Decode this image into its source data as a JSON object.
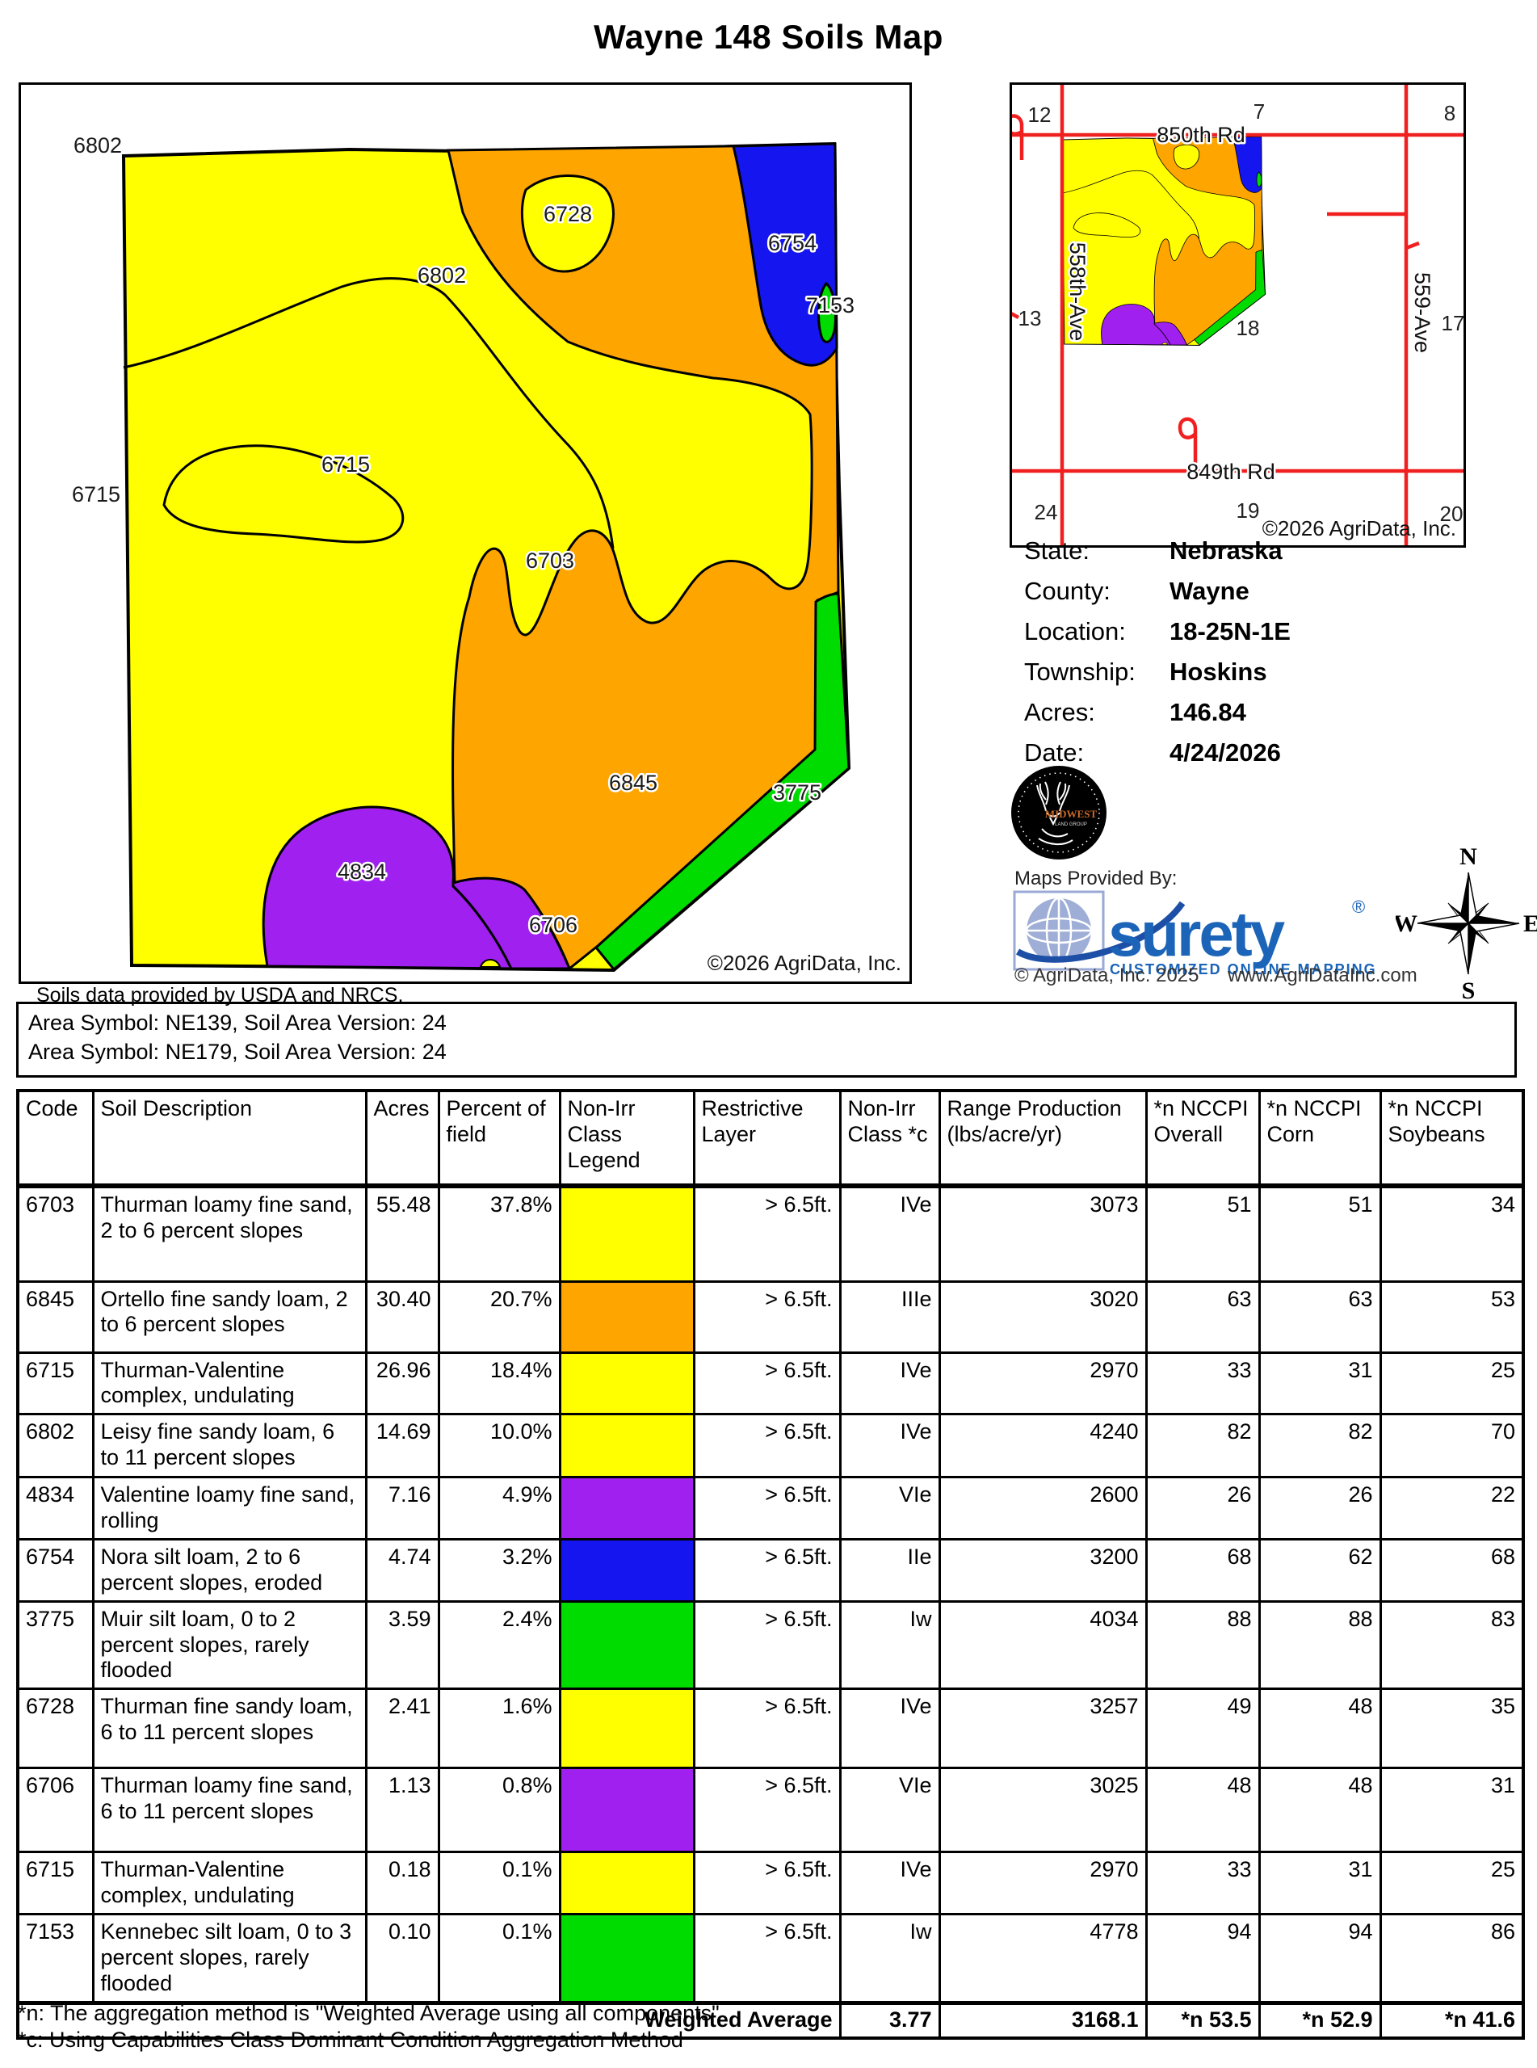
{
  "title": "Wayne 148 Soils Map",
  "colors": {
    "yellow": "#FFFF00",
    "orange": "#FFA500",
    "purple": "#A020F0",
    "blue": "#1515EF",
    "green": "#00DC00",
    "road_red": "#F02020",
    "surety_blue": "#1B64B8"
  },
  "map": {
    "labels": [
      "6802",
      "6728",
      "6802",
      "6754",
      "7153",
      "6715",
      "6715",
      "6703",
      "6845",
      "3775",
      "4834",
      "6706"
    ],
    "copyright": "©2026 AgriData, Inc."
  },
  "soils_note": "Soils data provided by USDA and NRCS.",
  "locator": {
    "road_top": "850th Rd",
    "road_bottom": "849th Rd",
    "road_left": "558th-Ave",
    "road_right": "559-Ave",
    "sections": [
      "12",
      "7",
      "8",
      "13",
      "18",
      "17",
      "24",
      "19",
      "20"
    ],
    "copyright": "©2026 AgriData, Inc."
  },
  "info": {
    "rows": [
      {
        "label": "State:",
        "value": "Nebraska"
      },
      {
        "label": "County:",
        "value": "Wayne"
      },
      {
        "label": "Location:",
        "value": "18-25N-1E"
      },
      {
        "label": "Township:",
        "value": "Hoskins"
      },
      {
        "label": "Acres:",
        "value": "146.84"
      },
      {
        "label": "Date:",
        "value": "4/24/2026"
      }
    ]
  },
  "logos": {
    "midwest_line1": "MIDWEST",
    "midwest_line2": "LAND GROUP",
    "provided_by": "Maps Provided By:",
    "surety": "surety",
    "surety_reg": "®",
    "surety_tag": "CUSTOMIZED ONLINE MAPPING",
    "agridata_copyright": "© AgriData, Inc. 2025",
    "agridata_url": "www.AgriDataInc.com"
  },
  "compass": {
    "n": "N",
    "e": "E",
    "s": "S",
    "w": "W"
  },
  "area_symbols": [
    "Area Symbol: NE139, Soil Area Version: 24",
    "Area Symbol: NE179, Soil Area Version: 24"
  ],
  "table": {
    "headers": [
      "Code",
      "Soil Description",
      "Acres",
      "Percent of field",
      "Non-Irr Class Legend",
      "Restrictive Layer",
      "Non-Irr Class *c",
      "Range Production (lbs/acre/yr)",
      "*n NCCPI Overall",
      "*n NCCPI Corn",
      "*n NCCPI Soybeans"
    ],
    "rows": [
      {
        "code": "6703",
        "desc": "Thurman loamy fine sand, 2 to 6 percent slopes",
        "acres": "55.48",
        "pct": "37.8%",
        "color": "#FFFF00",
        "restrictive": "> 6.5ft.",
        "cls": "IVe",
        "range": "3073",
        "overall": "51",
        "corn": "51",
        "soy": "34"
      },
      {
        "code": "6845",
        "desc": "Ortello fine sandy loam, 2 to 6 percent slopes",
        "acres": "30.40",
        "pct": "20.7%",
        "color": "#FFA500",
        "restrictive": "> 6.5ft.",
        "cls": "IIIe",
        "range": "3020",
        "overall": "63",
        "corn": "63",
        "soy": "53"
      },
      {
        "code": "6715",
        "desc": "Thurman-Valentine complex, undulating",
        "acres": "26.96",
        "pct": "18.4%",
        "color": "#FFFF00",
        "restrictive": "> 6.5ft.",
        "cls": "IVe",
        "range": "2970",
        "overall": "33",
        "corn": "31",
        "soy": "25"
      },
      {
        "code": "6802",
        "desc": "Leisy fine sandy loam, 6 to 11 percent slopes",
        "acres": "14.69",
        "pct": "10.0%",
        "color": "#FFFF00",
        "restrictive": "> 6.5ft.",
        "cls": "IVe",
        "range": "4240",
        "overall": "82",
        "corn": "82",
        "soy": "70"
      },
      {
        "code": "4834",
        "desc": "Valentine loamy fine sand, rolling",
        "acres": "7.16",
        "pct": "4.9%",
        "color": "#A020F0",
        "restrictive": "> 6.5ft.",
        "cls": "VIe",
        "range": "2600",
        "overall": "26",
        "corn": "26",
        "soy": "22"
      },
      {
        "code": "6754",
        "desc": "Nora silt loam, 2 to 6 percent slopes, eroded",
        "acres": "4.74",
        "pct": "3.2%",
        "color": "#1515EF",
        "restrictive": "> 6.5ft.",
        "cls": "IIe",
        "range": "3200",
        "overall": "68",
        "corn": "62",
        "soy": "68"
      },
      {
        "code": "3775",
        "desc": "Muir silt loam, 0 to 2 percent slopes, rarely flooded",
        "acres": "3.59",
        "pct": "2.4%",
        "color": "#00DC00",
        "restrictive": "> 6.5ft.",
        "cls": "Iw",
        "range": "4034",
        "overall": "88",
        "corn": "88",
        "soy": "83"
      },
      {
        "code": "6728",
        "desc": "Thurman fine sandy loam, 6 to 11 percent slopes",
        "acres": "2.41",
        "pct": "1.6%",
        "color": "#FFFF00",
        "restrictive": "> 6.5ft.",
        "cls": "IVe",
        "range": "3257",
        "overall": "49",
        "corn": "48",
        "soy": "35"
      },
      {
        "code": "6706",
        "desc": "Thurman loamy fine sand, 6 to 11 percent slopes",
        "acres": "1.13",
        "pct": "0.8%",
        "color": "#A020F0",
        "restrictive": "> 6.5ft.",
        "cls": "VIe",
        "range": "3025",
        "overall": "48",
        "corn": "48",
        "soy": "31"
      },
      {
        "code": "6715",
        "desc": "Thurman-Valentine complex, undulating",
        "acres": "0.18",
        "pct": "0.1%",
        "color": "#FFFF00",
        "restrictive": "> 6.5ft.",
        "cls": "IVe",
        "range": "2970",
        "overall": "33",
        "corn": "31",
        "soy": "25"
      },
      {
        "code": "7153",
        "desc": "Kennebec silt loam, 0 to 3 percent slopes, rarely flooded",
        "acres": "0.10",
        "pct": "0.1%",
        "color": "#00DC00",
        "restrictive": "> 6.5ft.",
        "cls": "Iw",
        "range": "4778",
        "overall": "94",
        "corn": "94",
        "soy": "86"
      }
    ],
    "weighted": {
      "label": "Weighted Average",
      "cls": "3.77",
      "range": "3168.1",
      "overall": "*n 53.5",
      "corn": "*n 52.9",
      "soy": "*n 41.6"
    }
  },
  "footnotes": [
    "*n: The aggregation method is \"Weighted Average using all components\"",
    "*c: Using Capabilities Class Dominant Condition Aggregation Method"
  ]
}
